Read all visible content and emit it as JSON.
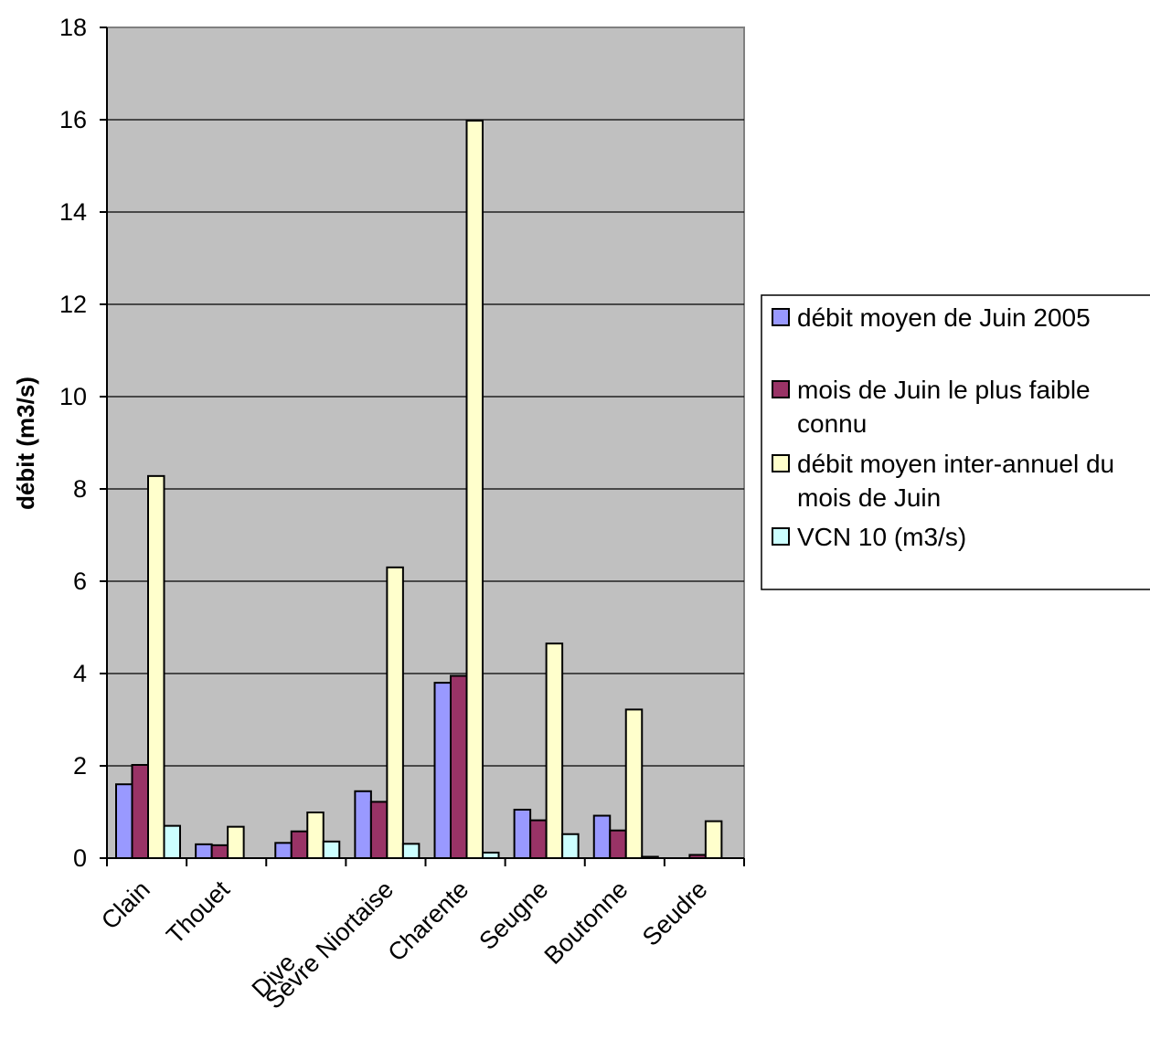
{
  "chart_data": {
    "type": "bar",
    "title": "",
    "xlabel": "",
    "ylabel": "débit (m3/s)",
    "ylim": [
      0,
      18
    ],
    "yticks": [
      0,
      2,
      4,
      6,
      8,
      10,
      12,
      14,
      16,
      18
    ],
    "grid": true,
    "legend_position": "right",
    "plot_background": "#C0C0C0",
    "categories": [
      "Clain",
      "Thouet",
      "Dive",
      "Sèvre Niortaise",
      "Charente",
      "Seugne",
      "Boutonne",
      "Seudre"
    ],
    "series": [
      {
        "name": "débit moyen de Juin 2005",
        "legend_lines": [
          "débit moyen de Juin 2005"
        ],
        "color": "#9999FF",
        "values": [
          1.6,
          0.3,
          0.33,
          1.45,
          3.8,
          1.05,
          0.92,
          0.0
        ]
      },
      {
        "name": "mois de Juin le plus faible connu",
        "legend_lines": [
          "mois de Juin le plus faible",
          "connu"
        ],
        "color": "#993366",
        "values": [
          2.02,
          0.28,
          0.58,
          1.22,
          3.95,
          0.82,
          0.6,
          0.07
        ]
      },
      {
        "name": "débit moyen inter-annuel du mois de Juin",
        "legend_lines": [
          "débit moyen inter-annuel du",
          "mois de Juin"
        ],
        "color": "#FFFFCC",
        "values": [
          8.28,
          0.68,
          0.99,
          6.3,
          15.98,
          4.65,
          3.22,
          0.8
        ]
      },
      {
        "name": "VCN 10 (m3/s)",
        "legend_lines": [
          "VCN 10 (m3/s)"
        ],
        "color": "#CCFFFF",
        "values": [
          0.7,
          0.0,
          0.36,
          0.31,
          0.12,
          0.52,
          0.03,
          0.0
        ]
      }
    ]
  }
}
